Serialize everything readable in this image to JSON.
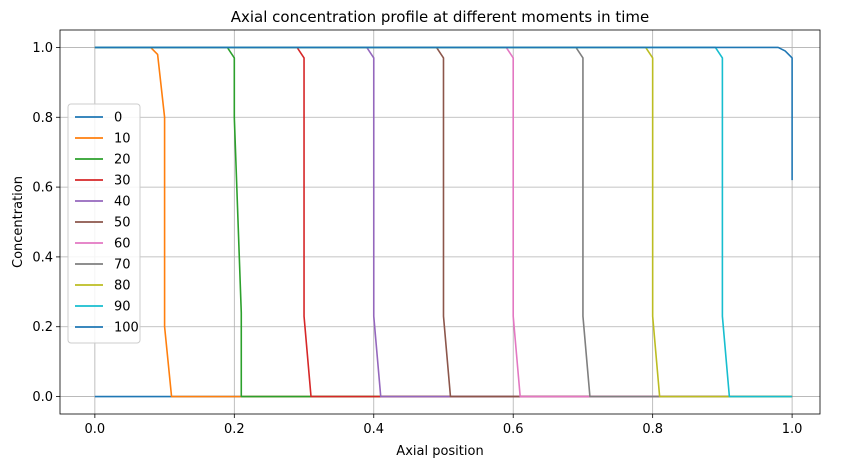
{
  "chart_data": {
    "type": "line",
    "title": "Axial concentration profile at different moments in time",
    "xlabel": "Axial position",
    "ylabel": "Concentration",
    "xlim": [
      -0.05,
      1.04
    ],
    "ylim": [
      -0.05,
      1.05
    ],
    "xticks": [
      0.0,
      0.2,
      0.4,
      0.6,
      0.8,
      1.0
    ],
    "xtick_labels": [
      "0.0",
      "0.2",
      "0.4",
      "0.6",
      "0.8",
      "1.0"
    ],
    "yticks": [
      0.0,
      0.2,
      0.4,
      0.6,
      0.8,
      1.0
    ],
    "ytick_labels": [
      "0.0",
      "0.2",
      "0.4",
      "0.6",
      "0.8",
      "1.0"
    ],
    "grid": true,
    "legend_position": "center-left",
    "series": [
      {
        "name": "0",
        "color": "#1f77b4",
        "x": [
          0.0,
          0.99,
          1.0
        ],
        "y": [
          0.0,
          0.0,
          0.0
        ]
      },
      {
        "name": "10",
        "color": "#ff7f0e",
        "x": [
          0.0,
          0.08,
          0.09,
          0.1,
          0.1,
          0.11,
          0.12,
          1.0
        ],
        "y": [
          1.0,
          1.0,
          0.98,
          0.8,
          0.2,
          0.0,
          0.0,
          0.0
        ]
      },
      {
        "name": "20",
        "color": "#2ca02c",
        "x": [
          0.0,
          0.19,
          0.2,
          0.2,
          0.21,
          0.21,
          0.22,
          1.0
        ],
        "y": [
          1.0,
          1.0,
          0.97,
          0.8,
          0.24,
          0.0,
          0.0,
          0.0
        ]
      },
      {
        "name": "30",
        "color": "#d62728",
        "x": [
          0.0,
          0.29,
          0.3,
          0.3,
          0.3,
          0.31,
          0.32,
          1.0
        ],
        "y": [
          1.0,
          1.0,
          0.97,
          0.8,
          0.23,
          0.0,
          0.0,
          0.0
        ]
      },
      {
        "name": "40",
        "color": "#9467bd",
        "x": [
          0.0,
          0.39,
          0.4,
          0.4,
          0.4,
          0.41,
          0.42,
          1.0
        ],
        "y": [
          1.0,
          1.0,
          0.97,
          0.8,
          0.23,
          0.0,
          0.0,
          0.0
        ]
      },
      {
        "name": "50",
        "color": "#8c564b",
        "x": [
          0.0,
          0.49,
          0.5,
          0.5,
          0.5,
          0.51,
          0.52,
          1.0
        ],
        "y": [
          1.0,
          1.0,
          0.97,
          0.8,
          0.23,
          0.0,
          0.0,
          0.0
        ]
      },
      {
        "name": "60",
        "color": "#e377c2",
        "x": [
          0.0,
          0.59,
          0.6,
          0.6,
          0.6,
          0.61,
          0.62,
          1.0
        ],
        "y": [
          1.0,
          1.0,
          0.97,
          0.8,
          0.23,
          0.0,
          0.0,
          0.0
        ]
      },
      {
        "name": "70",
        "color": "#7f7f7f",
        "x": [
          0.0,
          0.69,
          0.7,
          0.7,
          0.7,
          0.71,
          0.72,
          1.0
        ],
        "y": [
          1.0,
          1.0,
          0.97,
          0.8,
          0.23,
          0.0,
          0.0,
          0.0
        ]
      },
      {
        "name": "80",
        "color": "#bcbd22",
        "x": [
          0.0,
          0.79,
          0.8,
          0.8,
          0.8,
          0.81,
          0.82,
          1.0
        ],
        "y": [
          1.0,
          1.0,
          0.97,
          0.8,
          0.23,
          0.0,
          0.0,
          0.0
        ]
      },
      {
        "name": "90",
        "color": "#17becf",
        "x": [
          0.0,
          0.89,
          0.9,
          0.9,
          0.9,
          0.91,
          0.92,
          1.0
        ],
        "y": [
          1.0,
          1.0,
          0.97,
          0.8,
          0.23,
          0.0,
          0.0,
          0.0
        ]
      },
      {
        "name": "100",
        "color": "#1f77b4",
        "x": [
          0.0,
          0.98,
          0.99,
          1.0,
          1.0
        ],
        "y": [
          1.0,
          1.0,
          0.99,
          0.97,
          0.62
        ]
      }
    ]
  }
}
